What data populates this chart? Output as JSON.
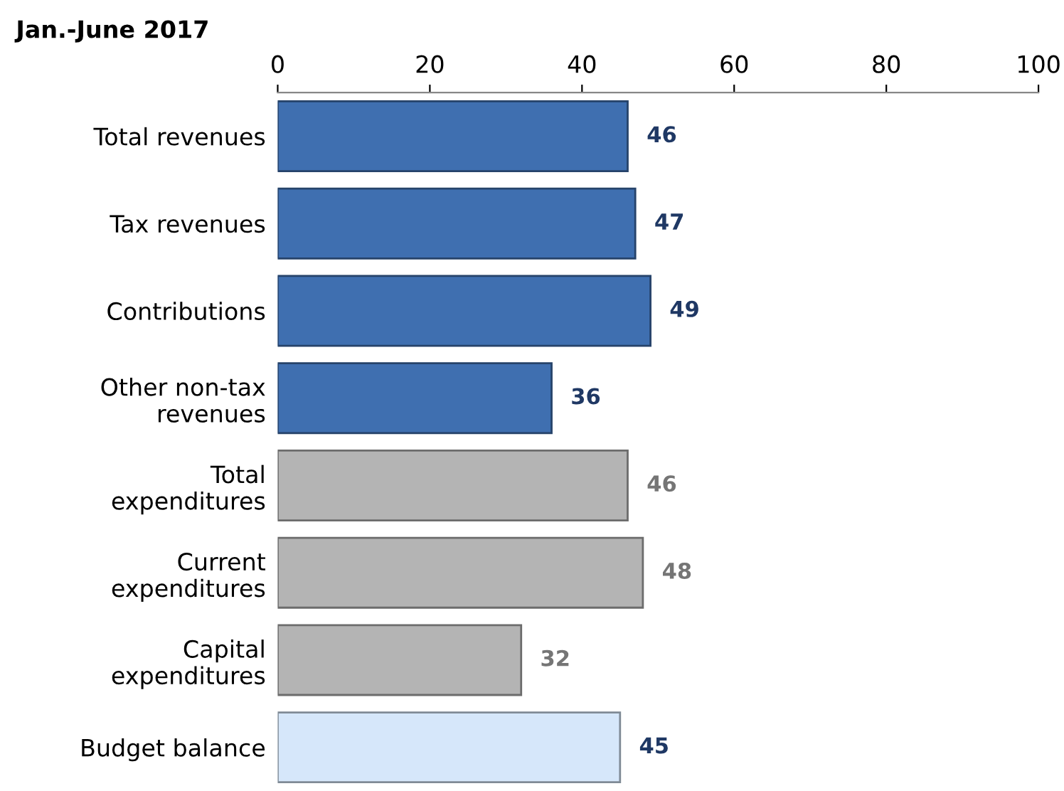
{
  "chart_data": {
    "type": "bar",
    "orientation": "horizontal",
    "title": "Jan.-June 2017",
    "categories": [
      "Total revenues",
      "Tax revenues",
      "Contributions",
      "Other non-tax\nrevenues",
      "Total\nexpenditures",
      "Current\nexpenditures",
      "Capital\nexpenditures",
      "Budget balance"
    ],
    "values": [
      46,
      47,
      49,
      36,
      46,
      48,
      32,
      45
    ],
    "colors": [
      "#3f6fb0",
      "#3f6fb0",
      "#3f6fb0",
      "#3f6fb0",
      "#b4b4b4",
      "#b4b4b4",
      "#b4b4b4",
      "#d6e7fa"
    ],
    "xlim": [
      0,
      100
    ],
    "xticks": [
      0,
      20,
      40,
      60,
      80,
      100
    ],
    "data_labels": true,
    "grid": false,
    "legend": false
  }
}
